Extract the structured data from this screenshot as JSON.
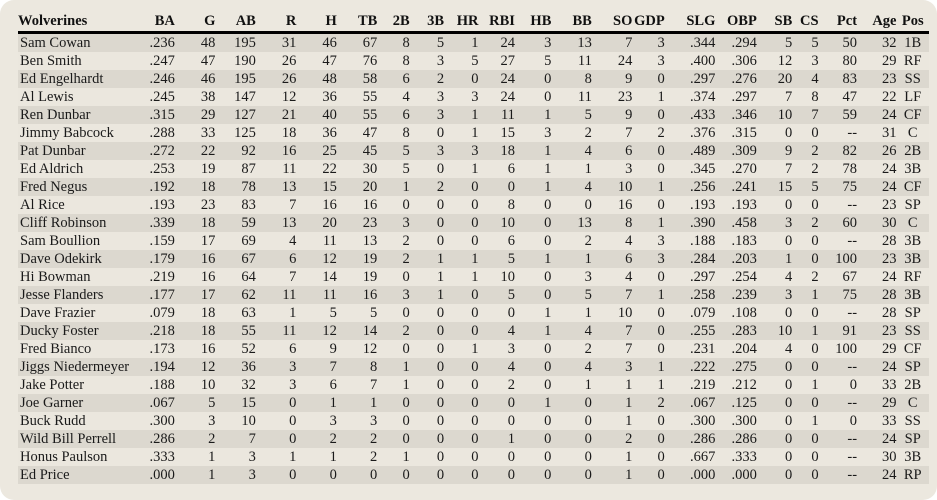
{
  "team": "Wolverines",
  "columns": [
    "BA",
    "G",
    "AB",
    "R",
    "H",
    "TB",
    "2B",
    "3B",
    "HR",
    "RBI",
    "HB",
    "BB",
    "SO",
    "GDP",
    "SLG",
    "OBP",
    "SB",
    "CS",
    "Pct",
    "Age",
    "Pos"
  ],
  "players": [
    {
      "name": "Sam Cowan",
      "stats": [
        ".236",
        "48",
        "195",
        "31",
        "46",
        "67",
        "8",
        "5",
        "1",
        "24",
        "3",
        "13",
        "7",
        "3",
        ".344",
        ".294",
        "5",
        "5",
        "50",
        "32",
        "1B"
      ]
    },
    {
      "name": "Ben Smith",
      "stats": [
        ".247",
        "47",
        "190",
        "26",
        "47",
        "76",
        "8",
        "3",
        "5",
        "27",
        "5",
        "11",
        "24",
        "3",
        ".400",
        ".306",
        "12",
        "3",
        "80",
        "29",
        "RF"
      ]
    },
    {
      "name": "Ed Engelhardt",
      "stats": [
        ".246",
        "46",
        "195",
        "26",
        "48",
        "58",
        "6",
        "2",
        "0",
        "24",
        "0",
        "8",
        "9",
        "0",
        ".297",
        ".276",
        "20",
        "4",
        "83",
        "23",
        "SS"
      ]
    },
    {
      "name": "Al Lewis",
      "stats": [
        ".245",
        "38",
        "147",
        "12",
        "36",
        "55",
        "4",
        "3",
        "3",
        "24",
        "0",
        "11",
        "23",
        "1",
        ".374",
        ".297",
        "7",
        "8",
        "47",
        "22",
        "LF"
      ]
    },
    {
      "name": "Ren Dunbar",
      "stats": [
        ".315",
        "29",
        "127",
        "21",
        "40",
        "55",
        "6",
        "3",
        "1",
        "11",
        "1",
        "5",
        "9",
        "0",
        ".433",
        ".346",
        "10",
        "7",
        "59",
        "24",
        "CF"
      ]
    },
    {
      "name": "Jimmy Babcock",
      "stats": [
        ".288",
        "33",
        "125",
        "18",
        "36",
        "47",
        "8",
        "0",
        "1",
        "15",
        "3",
        "2",
        "7",
        "2",
        ".376",
        ".315",
        "0",
        "0",
        "--",
        "31",
        "C"
      ]
    },
    {
      "name": "Pat Dunbar",
      "stats": [
        ".272",
        "22",
        "92",
        "16",
        "25",
        "45",
        "5",
        "3",
        "3",
        "18",
        "1",
        "4",
        "6",
        "0",
        ".489",
        ".309",
        "9",
        "2",
        "82",
        "26",
        "2B"
      ]
    },
    {
      "name": "Ed Aldrich",
      "stats": [
        ".253",
        "19",
        "87",
        "11",
        "22",
        "30",
        "5",
        "0",
        "1",
        "6",
        "1",
        "1",
        "3",
        "0",
        ".345",
        ".270",
        "7",
        "2",
        "78",
        "24",
        "3B"
      ]
    },
    {
      "name": "Fred Negus",
      "stats": [
        ".192",
        "18",
        "78",
        "13",
        "15",
        "20",
        "1",
        "2",
        "0",
        "0",
        "1",
        "4",
        "10",
        "1",
        ".256",
        ".241",
        "15",
        "5",
        "75",
        "24",
        "CF"
      ]
    },
    {
      "name": "Al Rice",
      "stats": [
        ".193",
        "23",
        "83",
        "7",
        "16",
        "16",
        "0",
        "0",
        "0",
        "8",
        "0",
        "0",
        "16",
        "0",
        ".193",
        ".193",
        "0",
        "0",
        "--",
        "23",
        "SP"
      ]
    },
    {
      "name": "Cliff Robinson",
      "stats": [
        ".339",
        "18",
        "59",
        "13",
        "20",
        "23",
        "3",
        "0",
        "0",
        "10",
        "0",
        "13",
        "8",
        "1",
        ".390",
        ".458",
        "3",
        "2",
        "60",
        "30",
        "C"
      ]
    },
    {
      "name": "Sam Boullion",
      "stats": [
        ".159",
        "17",
        "69",
        "4",
        "11",
        "13",
        "2",
        "0",
        "0",
        "6",
        "0",
        "2",
        "4",
        "3",
        ".188",
        ".183",
        "0",
        "0",
        "--",
        "28",
        "3B"
      ]
    },
    {
      "name": "Dave Odekirk",
      "stats": [
        ".179",
        "16",
        "67",
        "6",
        "12",
        "19",
        "2",
        "1",
        "1",
        "5",
        "1",
        "1",
        "6",
        "3",
        ".284",
        ".203",
        "1",
        "0",
        "100",
        "23",
        "3B"
      ]
    },
    {
      "name": "Hi Bowman",
      "stats": [
        ".219",
        "16",
        "64",
        "7",
        "14",
        "19",
        "0",
        "1",
        "1",
        "10",
        "0",
        "3",
        "4",
        "0",
        ".297",
        ".254",
        "4",
        "2",
        "67",
        "24",
        "RF"
      ]
    },
    {
      "name": "Jesse Flanders",
      "stats": [
        ".177",
        "17",
        "62",
        "11",
        "11",
        "16",
        "3",
        "1",
        "0",
        "5",
        "0",
        "5",
        "7",
        "1",
        ".258",
        ".239",
        "3",
        "1",
        "75",
        "28",
        "3B"
      ]
    },
    {
      "name": "Dave Frazier",
      "stats": [
        ".079",
        "18",
        "63",
        "1",
        "5",
        "5",
        "0",
        "0",
        "0",
        "0",
        "1",
        "1",
        "10",
        "0",
        ".079",
        ".108",
        "0",
        "0",
        "--",
        "28",
        "SP"
      ]
    },
    {
      "name": "Ducky Foster",
      "stats": [
        ".218",
        "18",
        "55",
        "11",
        "12",
        "14",
        "2",
        "0",
        "0",
        "4",
        "1",
        "4",
        "7",
        "0",
        ".255",
        ".283",
        "10",
        "1",
        "91",
        "23",
        "SS"
      ]
    },
    {
      "name": "Fred Bianco",
      "stats": [
        ".173",
        "16",
        "52",
        "6",
        "9",
        "12",
        "0",
        "0",
        "1",
        "3",
        "0",
        "2",
        "7",
        "0",
        ".231",
        ".204",
        "4",
        "0",
        "100",
        "29",
        "CF"
      ]
    },
    {
      "name": "Jiggs Niedermeyer",
      "stats": [
        ".194",
        "12",
        "36",
        "3",
        "7",
        "8",
        "1",
        "0",
        "0",
        "4",
        "0",
        "4",
        "3",
        "1",
        ".222",
        ".275",
        "0",
        "0",
        "--",
        "24",
        "SP"
      ]
    },
    {
      "name": "Jake Potter",
      "stats": [
        ".188",
        "10",
        "32",
        "3",
        "6",
        "7",
        "1",
        "0",
        "0",
        "2",
        "0",
        "1",
        "1",
        "1",
        ".219",
        ".212",
        "0",
        "1",
        "0",
        "33",
        "2B"
      ]
    },
    {
      "name": "Joe Garner",
      "stats": [
        ".067",
        "5",
        "15",
        "0",
        "1",
        "1",
        "0",
        "0",
        "0",
        "0",
        "1",
        "0",
        "1",
        "2",
        ".067",
        ".125",
        "0",
        "0",
        "--",
        "29",
        "C"
      ]
    },
    {
      "name": "Buck Rudd",
      "stats": [
        ".300",
        "3",
        "10",
        "0",
        "3",
        "3",
        "0",
        "0",
        "0",
        "0",
        "0",
        "0",
        "1",
        "0",
        ".300",
        ".300",
        "0",
        "1",
        "0",
        "33",
        "SS"
      ]
    },
    {
      "name": "Wild Bill Perrell",
      "stats": [
        ".286",
        "2",
        "7",
        "0",
        "2",
        "2",
        "0",
        "0",
        "0",
        "1",
        "0",
        "0",
        "2",
        "0",
        ".286",
        ".286",
        "0",
        "0",
        "--",
        "24",
        "SP"
      ]
    },
    {
      "name": "Honus Paulson",
      "stats": [
        ".333",
        "1",
        "3",
        "1",
        "1",
        "2",
        "1",
        "0",
        "0",
        "0",
        "0",
        "0",
        "1",
        "0",
        ".667",
        ".333",
        "0",
        "0",
        "--",
        "30",
        "3B"
      ]
    },
    {
      "name": "Ed Price",
      "stats": [
        ".000",
        "1",
        "3",
        "0",
        "0",
        "0",
        "0",
        "0",
        "0",
        "0",
        "0",
        "0",
        "1",
        "0",
        ".000",
        ".000",
        "0",
        "0",
        "--",
        "24",
        "RP"
      ]
    }
  ]
}
